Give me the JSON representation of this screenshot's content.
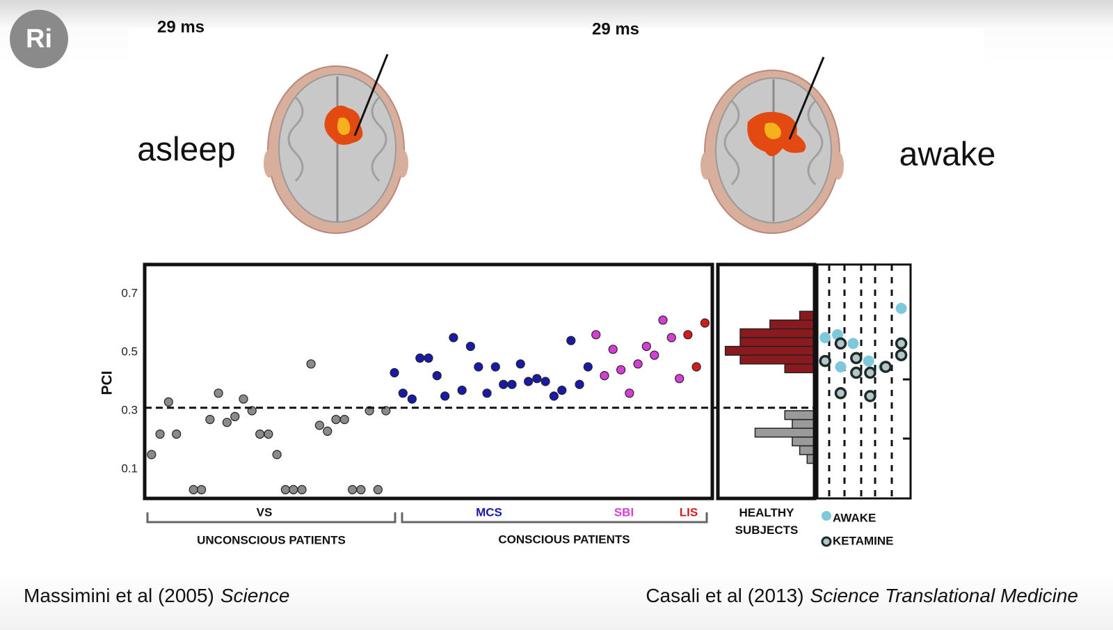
{
  "logo": "Ri",
  "panels": [
    {
      "time": "29 ms",
      "state": "asleep"
    },
    {
      "time": "29 ms",
      "state": "awake"
    }
  ],
  "chart_data": [
    {
      "type": "scatter",
      "ylabel": "PCI",
      "ylim": [
        0,
        0.8
      ],
      "yticks": [
        0.1,
        0.3,
        0.5,
        0.7
      ],
      "xlim": [
        0,
        100
      ],
      "threshold": 0.31,
      "series": [
        {
          "name": "VS",
          "color": "#8a8a8a",
          "x": [
            1.2,
            2.7,
            4.2,
            5.6,
            8.6,
            10.0,
            11.5,
            13.0,
            14.5,
            15.9,
            17.4,
            18.9,
            20.3,
            21.8,
            23.3,
            24.8,
            26.2,
            27.7,
            29.3,
            30.8,
            32.2,
            33.7,
            35.2,
            36.6,
            38.1,
            39.6,
            41.1,
            42.5
          ],
          "values": [
            0.15,
            0.22,
            0.33,
            0.22,
            0.03,
            0.03,
            0.27,
            0.36,
            0.26,
            0.28,
            0.34,
            0.3,
            0.22,
            0.22,
            0.15,
            0.03,
            0.03,
            0.03,
            0.46,
            0.25,
            0.23,
            0.27,
            0.27,
            0.03,
            0.03,
            0.3,
            0.03,
            0.3
          ]
        },
        {
          "name": "MCS",
          "color": "#1a1aa8",
          "x": [
            44.0,
            45.5,
            47.1,
            48.5,
            50.0,
            51.5,
            52.9,
            54.4,
            55.9,
            57.4,
            58.8,
            60.3,
            61.8,
            63.2,
            64.7,
            66.2,
            67.6,
            69.1,
            70.6,
            72.1,
            73.5,
            75.1,
            76.6,
            78.1
          ],
          "values": [
            0.43,
            0.36,
            0.34,
            0.48,
            0.48,
            0.42,
            0.35,
            0.55,
            0.37,
            0.52,
            0.45,
            0.36,
            0.45,
            0.39,
            0.39,
            0.46,
            0.4,
            0.41,
            0.4,
            0.35,
            0.37,
            0.54,
            0.39,
            0.45
          ]
        },
        {
          "name": "SBI",
          "color": "#d63fd6",
          "x": [
            79.5,
            81.0,
            82.5,
            83.9,
            85.4,
            86.9,
            88.4,
            89.8,
            91.3,
            92.8,
            94.2
          ],
          "values": [
            0.56,
            0.42,
            0.51,
            0.44,
            0.36,
            0.46,
            0.52,
            0.49,
            0.61,
            0.55,
            0.41
          ]
        },
        {
          "name": "LIS",
          "color": "#d41c1c",
          "x": [
            95.7,
            97.2,
            98.7
          ],
          "values": [
            0.56,
            0.45,
            0.6
          ]
        }
      ],
      "groups": [
        "UNCONSCIOUS PATIENTS",
        "CONSCIOUS PATIENTS"
      ]
    },
    {
      "type": "histogram",
      "title": "HEALTHY SUBJECTS",
      "ylim": [
        0,
        0.8
      ],
      "xlim": [
        0,
        13
      ],
      "series": [
        {
          "color": "#8b1a1f",
          "bins": [
            0.43,
            0.46,
            0.49,
            0.52,
            0.55,
            0.58,
            0.61,
            0.64
          ],
          "values": [
            4,
            10,
            12,
            10,
            10,
            6,
            2
          ]
        },
        {
          "color": "#9a9a9a",
          "bins": [
            0.12,
            0.15,
            0.18,
            0.21,
            0.24,
            0.27,
            0.3
          ],
          "values": [
            1,
            2,
            3,
            8,
            3,
            4
          ]
        }
      ]
    },
    {
      "type": "scatter",
      "ylim": [
        0,
        0.8
      ],
      "xlim": [
        0,
        6
      ],
      "series": [
        {
          "name": "AWAKE",
          "color": "#7ec8dc",
          "x": [
            0.5,
            1.3,
            1.5,
            2.3,
            3.3,
            4.3,
            5.4
          ],
          "values": [
            0.55,
            0.56,
            0.45,
            0.53,
            0.47,
            0.45,
            0.65
          ]
        },
        {
          "name": "KETAMINE",
          "color": "#1c2a2a",
          "x": [
            0.5,
            1.5,
            1.5,
            2.5,
            2.5,
            3.4,
            3.4,
            4.4,
            5.4,
            5.4
          ],
          "values": [
            0.47,
            0.53,
            0.36,
            0.48,
            0.43,
            0.43,
            0.35,
            0.45,
            0.53,
            0.49
          ]
        }
      ]
    }
  ],
  "citations": [
    {
      "authors": "Massimini et al (2005)",
      "journal": "Science"
    },
    {
      "authors": "Casali et al (2013)",
      "journal": "Science Translational Medicine"
    }
  ]
}
